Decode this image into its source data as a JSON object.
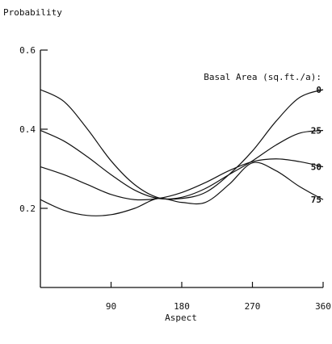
{
  "chart_data": {
    "type": "line",
    "title": "",
    "ylabel": "Probability",
    "xlabel": "Aspect",
    "legend_title": "Basal Area (sq.ft./a):",
    "legend_placement": "right, at line ends",
    "xlim": [
      0,
      360
    ],
    "ylim": [
      0,
      0.6
    ],
    "x_ticks": [
      {
        "value": 90,
        "label": "90"
      },
      {
        "value": 180,
        "label": "180"
      },
      {
        "value": 270,
        "label": "270"
      },
      {
        "value": 360,
        "label": "360"
      }
    ],
    "y_ticks": [
      {
        "value": 0.2,
        "label": "0.2"
      },
      {
        "value": 0.4,
        "label": "0.4"
      },
      {
        "value": 0.6,
        "label": "0.6"
      }
    ],
    "grid": false,
    "x": [
      0,
      30,
      60,
      90,
      120,
      150,
      180,
      210,
      240,
      270,
      300,
      330,
      360
    ],
    "series": [
      {
        "name": "0",
        "values": [
          0.5,
          0.47,
          0.4,
          0.32,
          0.26,
          0.227,
          0.225,
          0.24,
          0.285,
          0.345,
          0.42,
          0.48,
          0.5
        ]
      },
      {
        "name": "25",
        "values": [
          0.397,
          0.37,
          0.33,
          0.285,
          0.246,
          0.225,
          0.228,
          0.25,
          0.285,
          0.32,
          0.36,
          0.39,
          0.397
        ]
      },
      {
        "name": "50",
        "values": [
          0.305,
          0.285,
          0.26,
          0.235,
          0.222,
          0.225,
          0.24,
          0.265,
          0.295,
          0.318,
          0.325,
          0.318,
          0.305
        ]
      },
      {
        "name": "75",
        "values": [
          0.222,
          0.195,
          0.182,
          0.184,
          0.2,
          0.225,
          0.215,
          0.215,
          0.26,
          0.315,
          0.295,
          0.255,
          0.222
        ]
      }
    ],
    "line_color": "#111111"
  }
}
